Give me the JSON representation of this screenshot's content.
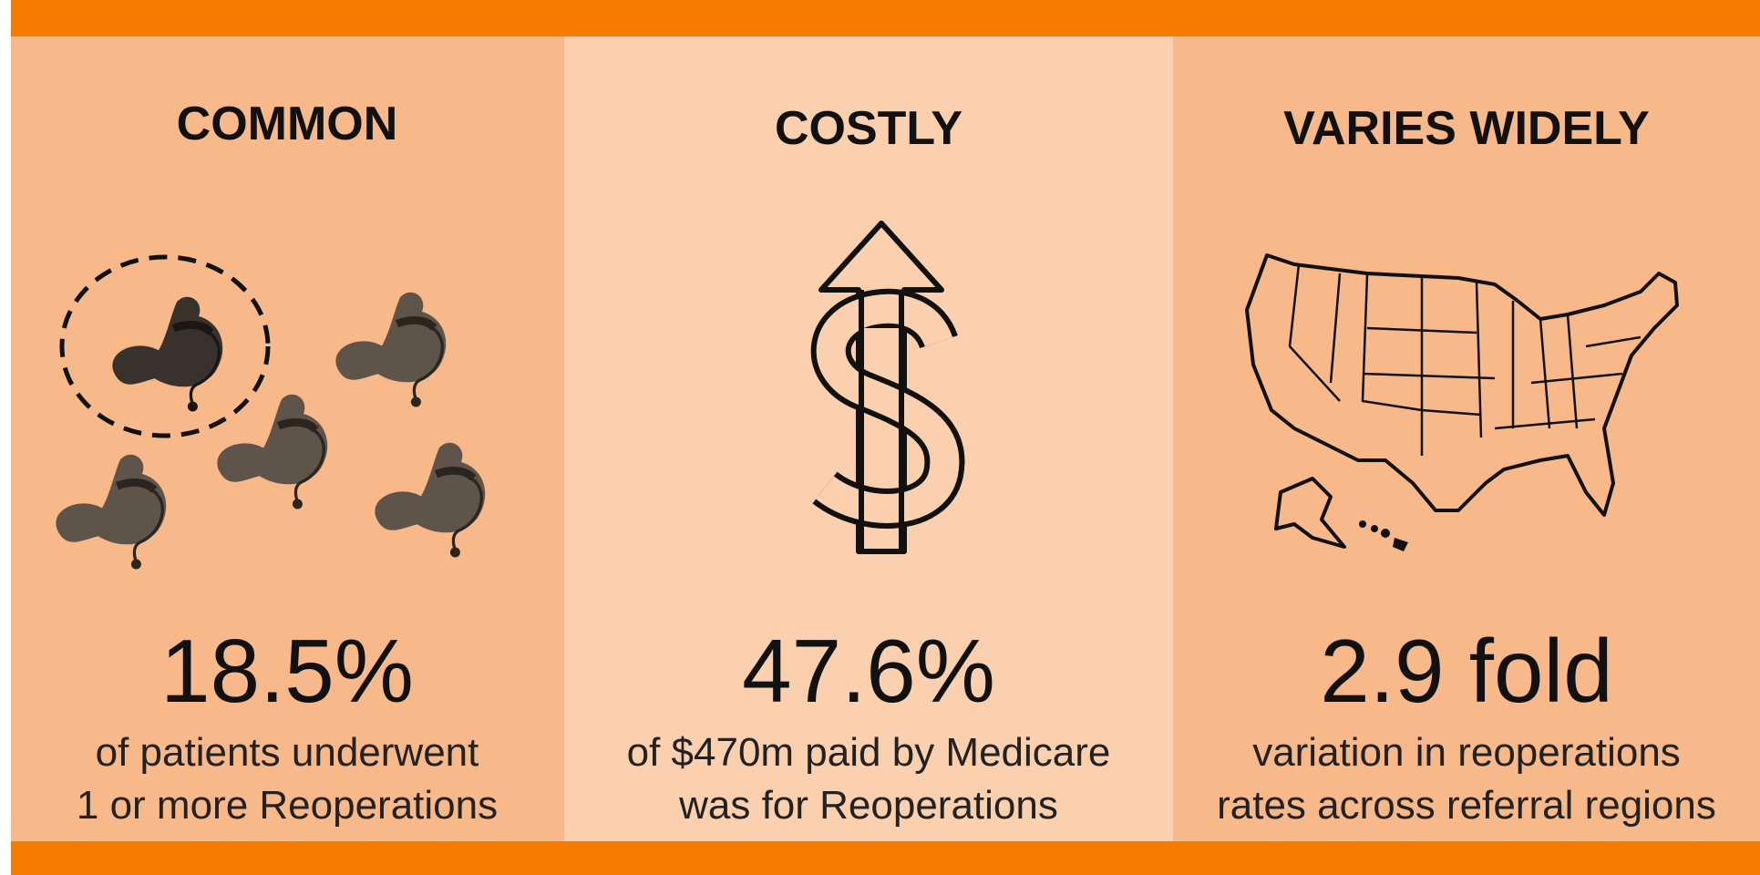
{
  "panels": [
    {
      "title": "COMMON",
      "stat": "18.5%",
      "description": [
        "of patients underwent",
        "1 or more Reoperations"
      ]
    },
    {
      "title": "COSTLY",
      "stat": "47.6%",
      "description": [
        "of $470m paid by Medicare",
        "was for Reoperations"
      ]
    },
    {
      "title": "VARIES WIDELY",
      "stat": "2.9 fold",
      "description": [
        "variation in reoperations",
        "rates across referral regions"
      ]
    }
  ]
}
